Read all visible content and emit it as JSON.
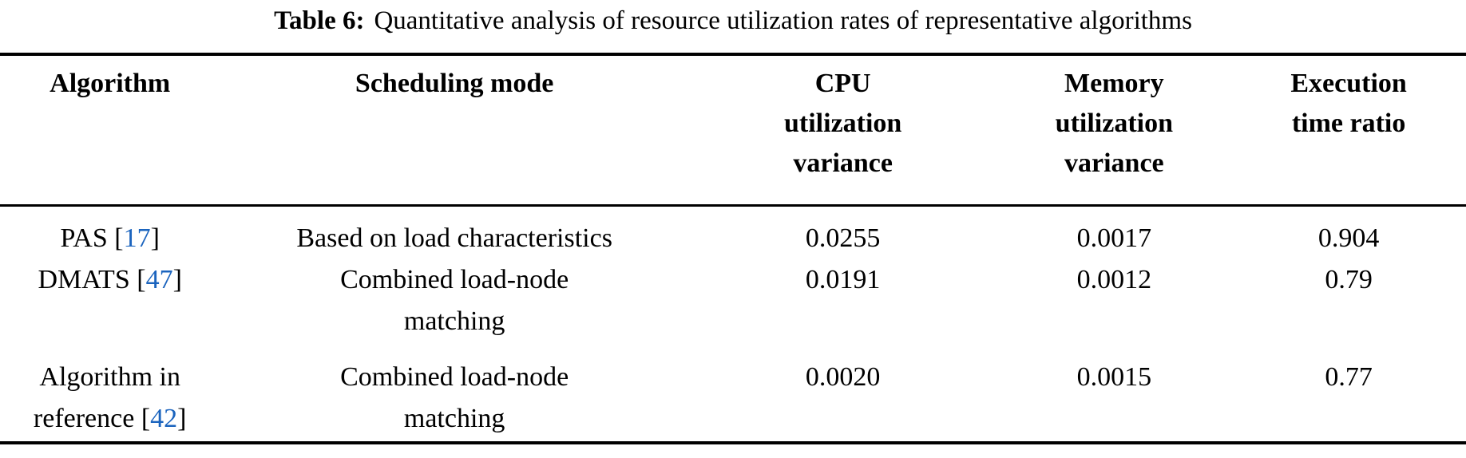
{
  "caption": {
    "label": "Table 6:",
    "text": "Quantitative analysis of resource utilization rates of representative algorithms"
  },
  "colors": {
    "text": "#000000",
    "reference_link": "#1B64BE",
    "rule": "#000000",
    "background": "#FFFFFF"
  },
  "header": {
    "algorithm": "Algorithm",
    "scheduling": "Scheduling mode",
    "cpu": {
      "l1": "CPU",
      "l2": "utilization",
      "l3": "variance"
    },
    "memory": {
      "l1": "Memory",
      "l2": "utilization",
      "l3": "variance"
    },
    "execution": {
      "l1": "Execution",
      "l2": "time ratio"
    }
  },
  "rows": [
    {
      "algorithm": {
        "pre": "PAS [",
        "ref": "17",
        "post": "]"
      },
      "scheduling": {
        "l1": "Based on load characteristics"
      },
      "cpu_variance": "0.0255",
      "memory_variance": "0.0017",
      "execution_ratio": "0.904"
    },
    {
      "algorithm": {
        "pre": "DMATS [",
        "ref": "47",
        "post": "]"
      },
      "scheduling": {
        "l1": "Combined load-node",
        "l2": "matching"
      },
      "cpu_variance": "0.0191",
      "memory_variance": "0.0012",
      "execution_ratio": "0.79"
    },
    {
      "algorithm": {
        "l1": "Algorithm in",
        "pre": "reference [",
        "ref": "42",
        "post": "]"
      },
      "scheduling": {
        "l1": "Combined load-node",
        "l2": "matching"
      },
      "cpu_variance": "0.0020",
      "memory_variance": "0.0015",
      "execution_ratio": "0.77"
    }
  ],
  "chart_data": {
    "type": "table",
    "title": "Table 6: Quantitative analysis of resource utilization rates of representative algorithms",
    "columns": [
      "Algorithm",
      "Scheduling mode",
      "CPU utilization variance",
      "Memory utilization variance",
      "Execution time ratio"
    ],
    "rows": [
      [
        "PAS [17]",
        "Based on load characteristics",
        0.0255,
        0.0017,
        0.904
      ],
      [
        "DMATS [47]",
        "Combined load-node matching",
        0.0191,
        0.0012,
        0.79
      ],
      [
        "Algorithm in reference [42]",
        "Combined load-node matching",
        0.002,
        0.0015,
        0.77
      ]
    ]
  }
}
